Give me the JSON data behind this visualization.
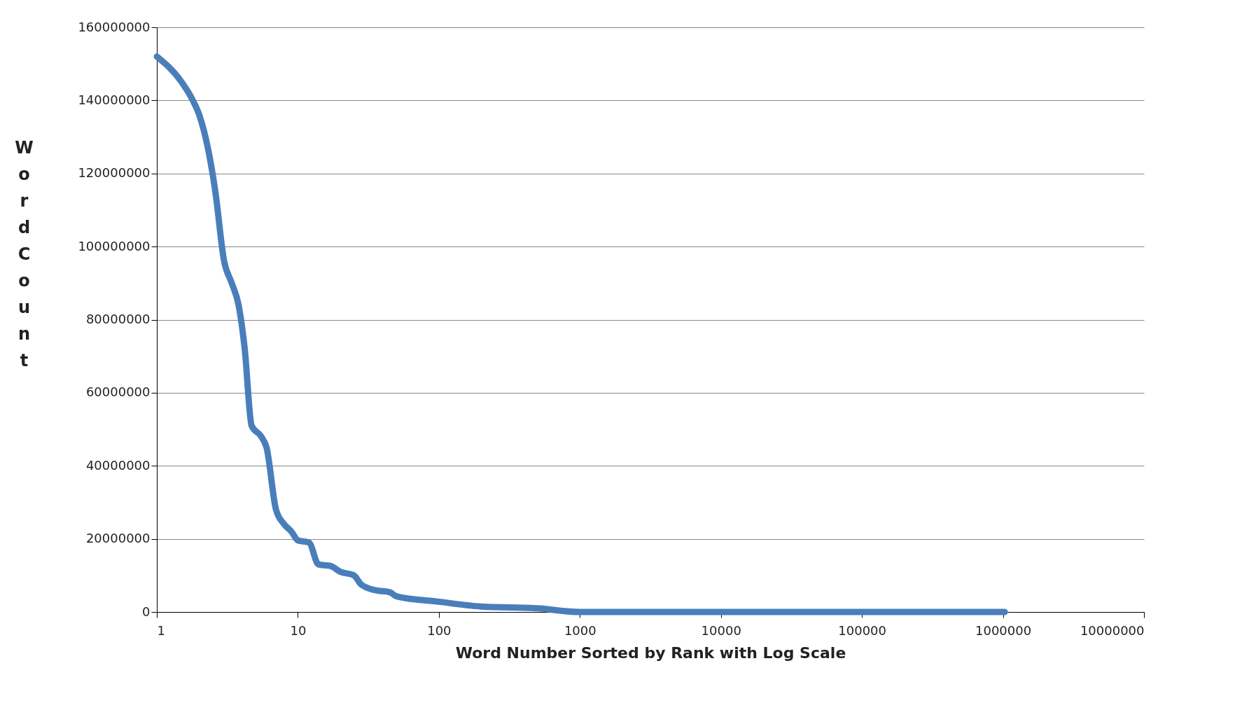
{
  "chart_data": {
    "type": "line",
    "xlabel": "Word Number Sorted by Rank with Log Scale",
    "ylabel": "Word Count",
    "log": "x",
    "grid": "y",
    "line_style": "solid",
    "xlim": [
      1,
      10000000
    ],
    "xticks": [
      1,
      10,
      100,
      1000,
      10000,
      100000,
      1000000,
      10000000
    ],
    "ylim": [
      0,
      160000000
    ],
    "yticks": [
      0,
      20000000,
      40000000,
      60000000,
      80000000,
      100000000,
      120000000,
      140000000,
      160000000
    ],
    "series": [
      {
        "color": "#4a7ebb",
        "x": [
          1,
          1.5,
          1.8,
          2,
          2.3,
          2.6,
          3,
          3.4,
          3.8,
          4.2,
          4.7,
          5.5,
          6,
          7,
          8,
          9,
          10,
          12,
          14,
          17,
          20,
          25,
          28,
          35,
          45,
          50,
          100,
          200,
          500,
          1000,
          1030000
        ],
        "values": [
          152000000,
          145000000,
          140000000,
          136000000,
          127000000,
          115000000,
          96000000,
          90000000,
          84000000,
          72000000,
          51000000,
          48000000,
          45000000,
          28000000,
          24000000,
          22000000,
          19600000,
          19000000,
          13000000,
          12600000,
          11000000,
          10000000,
          7600000,
          6000000,
          5400000,
          4300000,
          2800000,
          1500000,
          1000000,
          0,
          0
        ]
      }
    ]
  }
}
